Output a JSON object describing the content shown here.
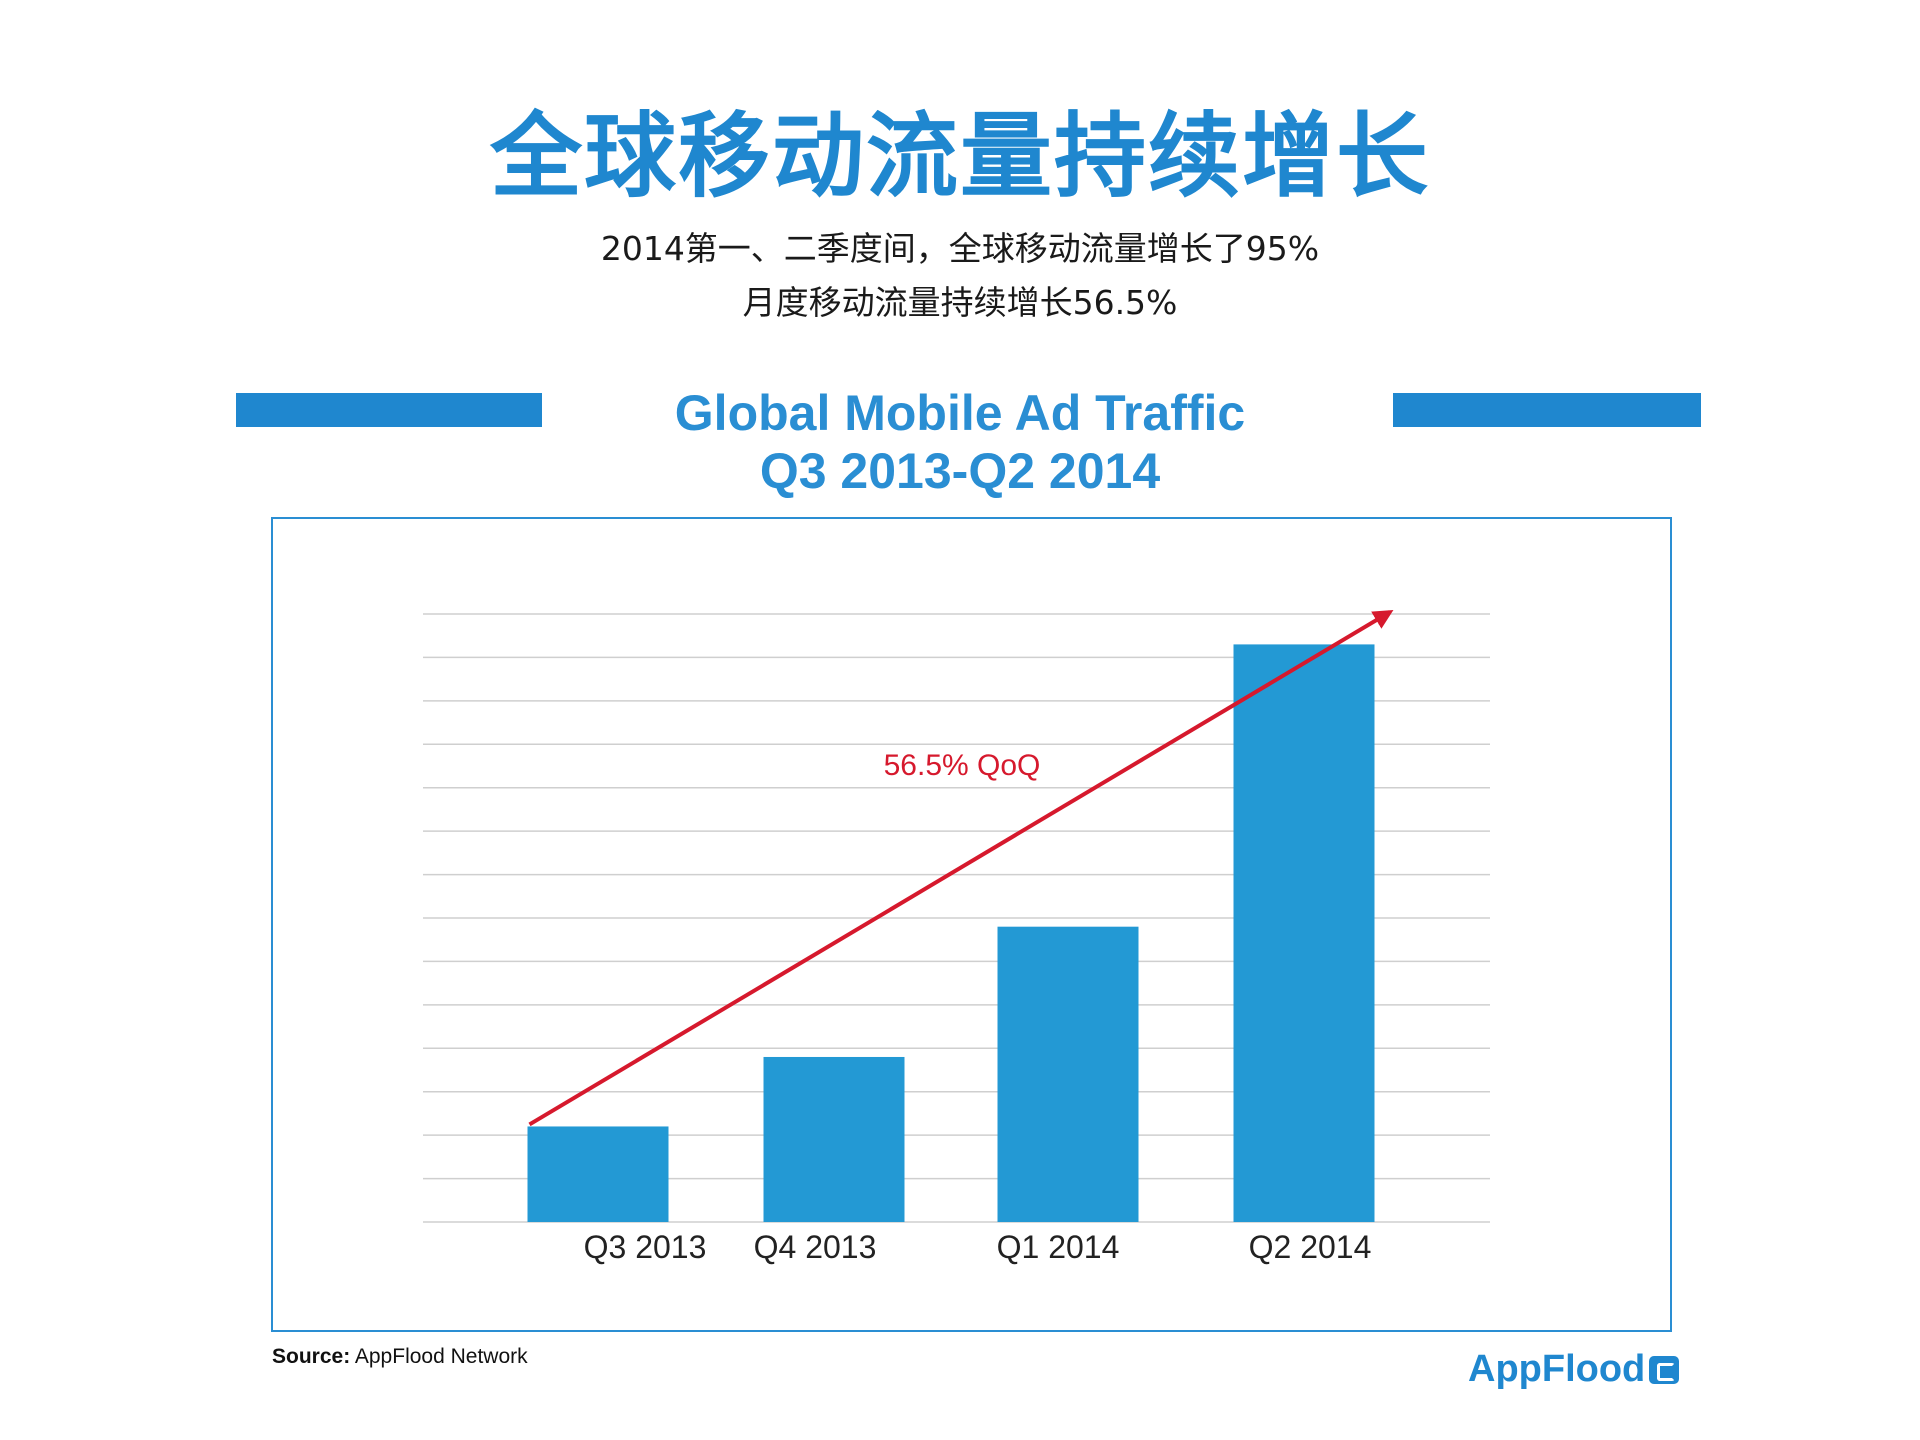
{
  "header": {
    "title": "全球移动流量持续增长",
    "subtitle_line1": "2014第一、二季度间，全球移动流量增长了95%",
    "subtitle_line2": "月度移动流量持续增长56.5%"
  },
  "chart_data": {
    "type": "bar",
    "title_line1": "Global Mobile Ad Traffic",
    "title_line2": "Q3 2013-Q2 2014",
    "categories": [
      "Q3 2013",
      "Q4 2013",
      "Q1 2014",
      "Q2 2014"
    ],
    "values": [
      2.2,
      3.8,
      6.8,
      13.3
    ],
    "ylim": [
      0,
      14
    ],
    "grid": true,
    "bar_color": "#2399d4",
    "annotation": {
      "text": "56.5% QoQ",
      "color": "#d6192d"
    }
  },
  "footer": {
    "source_label": "Source:",
    "source_text": "AppFlood Network",
    "logo_text": "AppFlood"
  }
}
